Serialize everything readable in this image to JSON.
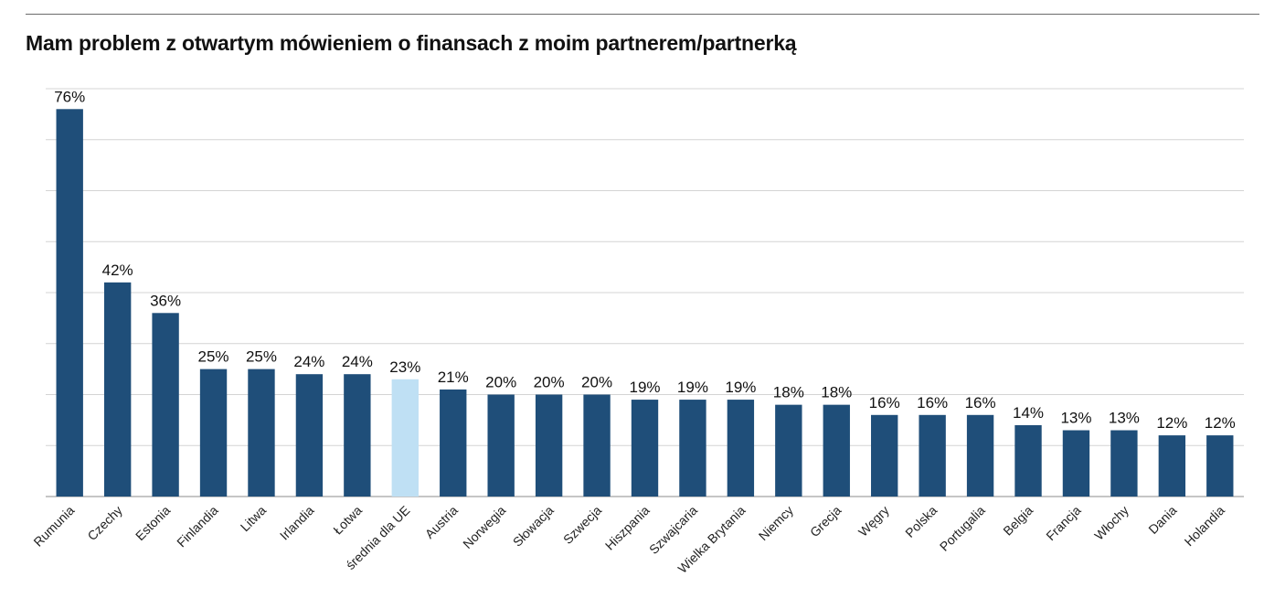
{
  "chart_data": {
    "type": "bar",
    "title": "Mam problem z otwartym mówieniem o finansach z moim partnerem/partnerką",
    "categories": [
      "Rumunia",
      "Czechy",
      "Estonia",
      "Finlandia",
      "Litwa",
      "Irlandia",
      "Łotwa",
      "średnia dla UE",
      "Austria",
      "Norwegia",
      "Słowacja",
      "Szwecja",
      "Hiszpania",
      "Szwajcaria",
      "Wielka Brytania",
      "Niemcy",
      "Grecja",
      "Węgry",
      "Polska",
      "Portugalia",
      "Belgia",
      "Francja",
      "Włochy",
      "Dania",
      "Holandia"
    ],
    "values": [
      76,
      42,
      36,
      25,
      25,
      24,
      24,
      23,
      21,
      20,
      20,
      20,
      19,
      19,
      19,
      18,
      18,
      16,
      16,
      16,
      14,
      13,
      13,
      12,
      12
    ],
    "data_labels": [
      "76%",
      "42%",
      "36%",
      "25%",
      "25%",
      "24%",
      "24%",
      "23%",
      "21%",
      "20%",
      "20%",
      "20%",
      "19%",
      "19%",
      "19%",
      "18%",
      "18%",
      "16%",
      "16%",
      "16%",
      "14%",
      "13%",
      "13%",
      "12%",
      "12%"
    ],
    "highlight_category": "średnia dla UE",
    "ylim": [
      0,
      80
    ],
    "grid": true,
    "colors": {
      "bar": "#1f4e79",
      "highlight": "#bfe0f4",
      "grid": "#d4d4d4",
      "axis": "#8c8c8c"
    }
  }
}
